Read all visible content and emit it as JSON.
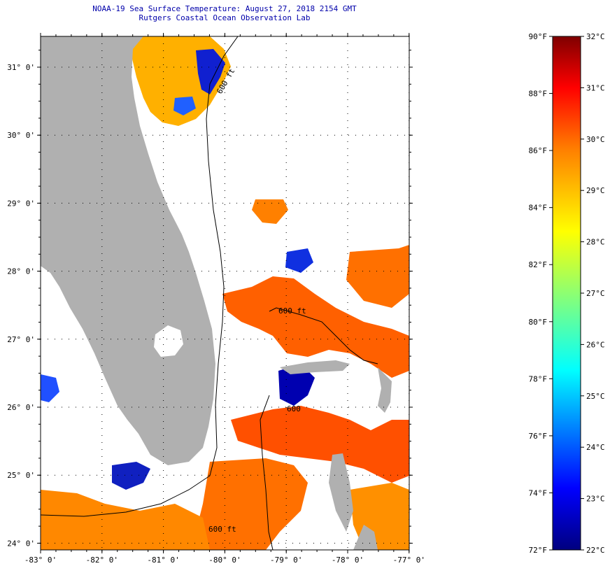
{
  "header": {
    "title": "NOAA-19 Sea Surface Temperature:  August 27, 2018 2154 GMT",
    "subtitle": "Rutgers Coastal Ocean Observation Lab"
  },
  "map": {
    "lon_ticks": [
      "-83° 0'",
      "-82° 0'",
      "-81° 0'",
      "-80° 0'",
      "-79° 0'",
      "-78° 0'",
      "-77° 0'"
    ],
    "lat_ticks": [
      "31° 0'",
      "30° 0'",
      "29° 0'",
      "28° 0'",
      "27° 0'",
      "26° 0'",
      "25° 0'",
      "24° 0'"
    ],
    "lon_values": [
      -83,
      -82,
      -81,
      -80,
      -79,
      -78,
      -77
    ],
    "lat_values": [
      31,
      30,
      29,
      28,
      27,
      26,
      25,
      24
    ],
    "contour_labels": [
      "600 ft",
      "600 ft",
      "600 ft",
      "600"
    ],
    "colors": {
      "land": "#b0b0b0",
      "no_data": "#ffffff",
      "contour": "#000000",
      "grid": "#000000"
    }
  },
  "legend": {
    "fahrenheit_labels": [
      "90°F",
      "88°F",
      "86°F",
      "84°F",
      "82°F",
      "80°F",
      "78°F",
      "76°F",
      "74°F",
      "72°F"
    ],
    "celsius_labels": [
      "32°C",
      "31°C",
      "30°C",
      "29°C",
      "28°C",
      "27°C",
      "26°C",
      "25°C",
      "24°C",
      "23°C",
      "22°C"
    ],
    "colors": [
      "#00007f",
      "#0000ff",
      "#00ffff",
      "#ffff00",
      "#ff7f00",
      "#ff0000",
      "#7f0000"
    ]
  }
}
